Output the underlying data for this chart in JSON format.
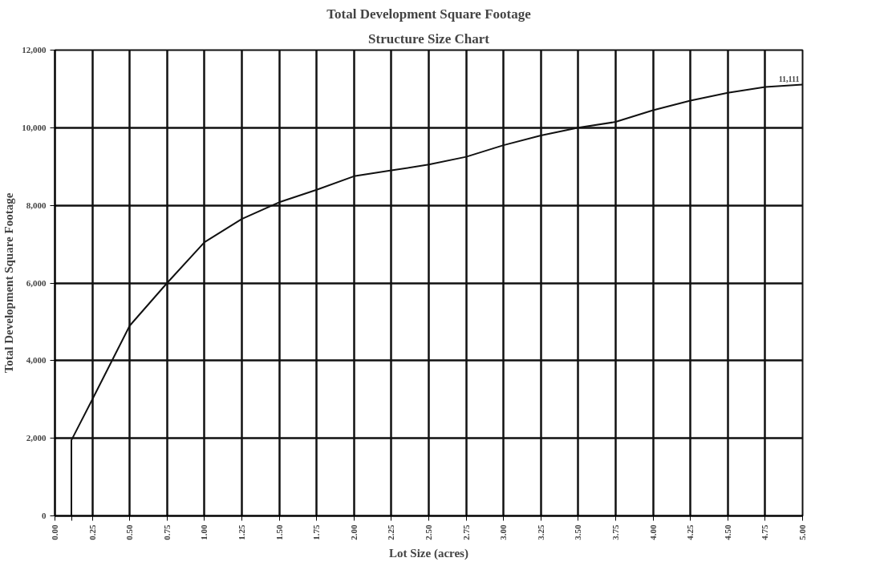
{
  "chart_data": {
    "type": "line",
    "title": "Total Development Square Footage",
    "subtitle": "Structure Size Chart",
    "xlabel": "Lot Size (acres)",
    "ylabel": "Total Development Square Footage",
    "x": [
      0.11,
      0.11,
      0.25,
      0.5,
      0.75,
      1.0,
      1.25,
      1.5,
      1.75,
      2.0,
      2.25,
      2.5,
      2.75,
      3.0,
      3.25,
      3.5,
      3.75,
      4.0,
      4.25,
      4.5,
      4.75,
      5.0
    ],
    "series": [
      {
        "color": "#111111",
        "values": [
          0,
          1950,
          3000,
          4900,
          6000,
          7050,
          7650,
          8080,
          8400,
          8750,
          8900,
          9050,
          9250,
          9550,
          9800,
          10000,
          10150,
          10450,
          10700,
          10900,
          11050,
          11111
        ],
        "value_labels": [
          null,
          null,
          null,
          null,
          null,
          null,
          null,
          null,
          null,
          null,
          null,
          null,
          null,
          null,
          null,
          null,
          null,
          null,
          null,
          null,
          null,
          "11,111"
        ]
      }
    ],
    "xlim": [
      0,
      5
    ],
    "ylim": [
      0,
      12000
    ],
    "xticks": [
      {
        "value": 0,
        "label": "0.00"
      },
      {
        "value": 0.11,
        "label": null
      },
      0.25,
      {
        "value": 0.5,
        "label": "0.50"
      },
      0.75,
      {
        "value": 1,
        "label": "1.00"
      },
      1.25,
      {
        "value": 1.5,
        "label": "1.50"
      },
      1.75,
      {
        "value": 2,
        "label": "2.00"
      },
      2.25,
      {
        "value": 2.5,
        "label": "2.50"
      },
      2.75,
      {
        "value": 3,
        "label": "3.00"
      },
      3.25,
      {
        "value": 3.5,
        "label": "3.50"
      },
      3.75,
      {
        "value": 4,
        "label": "4.00"
      },
      4.25,
      {
        "value": 4.5,
        "label": "4.50"
      },
      4.75,
      {
        "value": 5,
        "label": "5.00"
      }
    ],
    "yticks": [
      0,
      {
        "value": 2000,
        "label": "2,000"
      },
      {
        "value": 4000,
        "label": "4,000"
      },
      {
        "value": 6000,
        "label": "6,000"
      },
      {
        "value": 8000,
        "label": "8,000"
      },
      {
        "value": 10000,
        "label": "10,000"
      },
      {
        "value": 12000,
        "label": "12,000"
      }
    ],
    "grid": true,
    "marker": "none",
    "line_style": "solid"
  }
}
